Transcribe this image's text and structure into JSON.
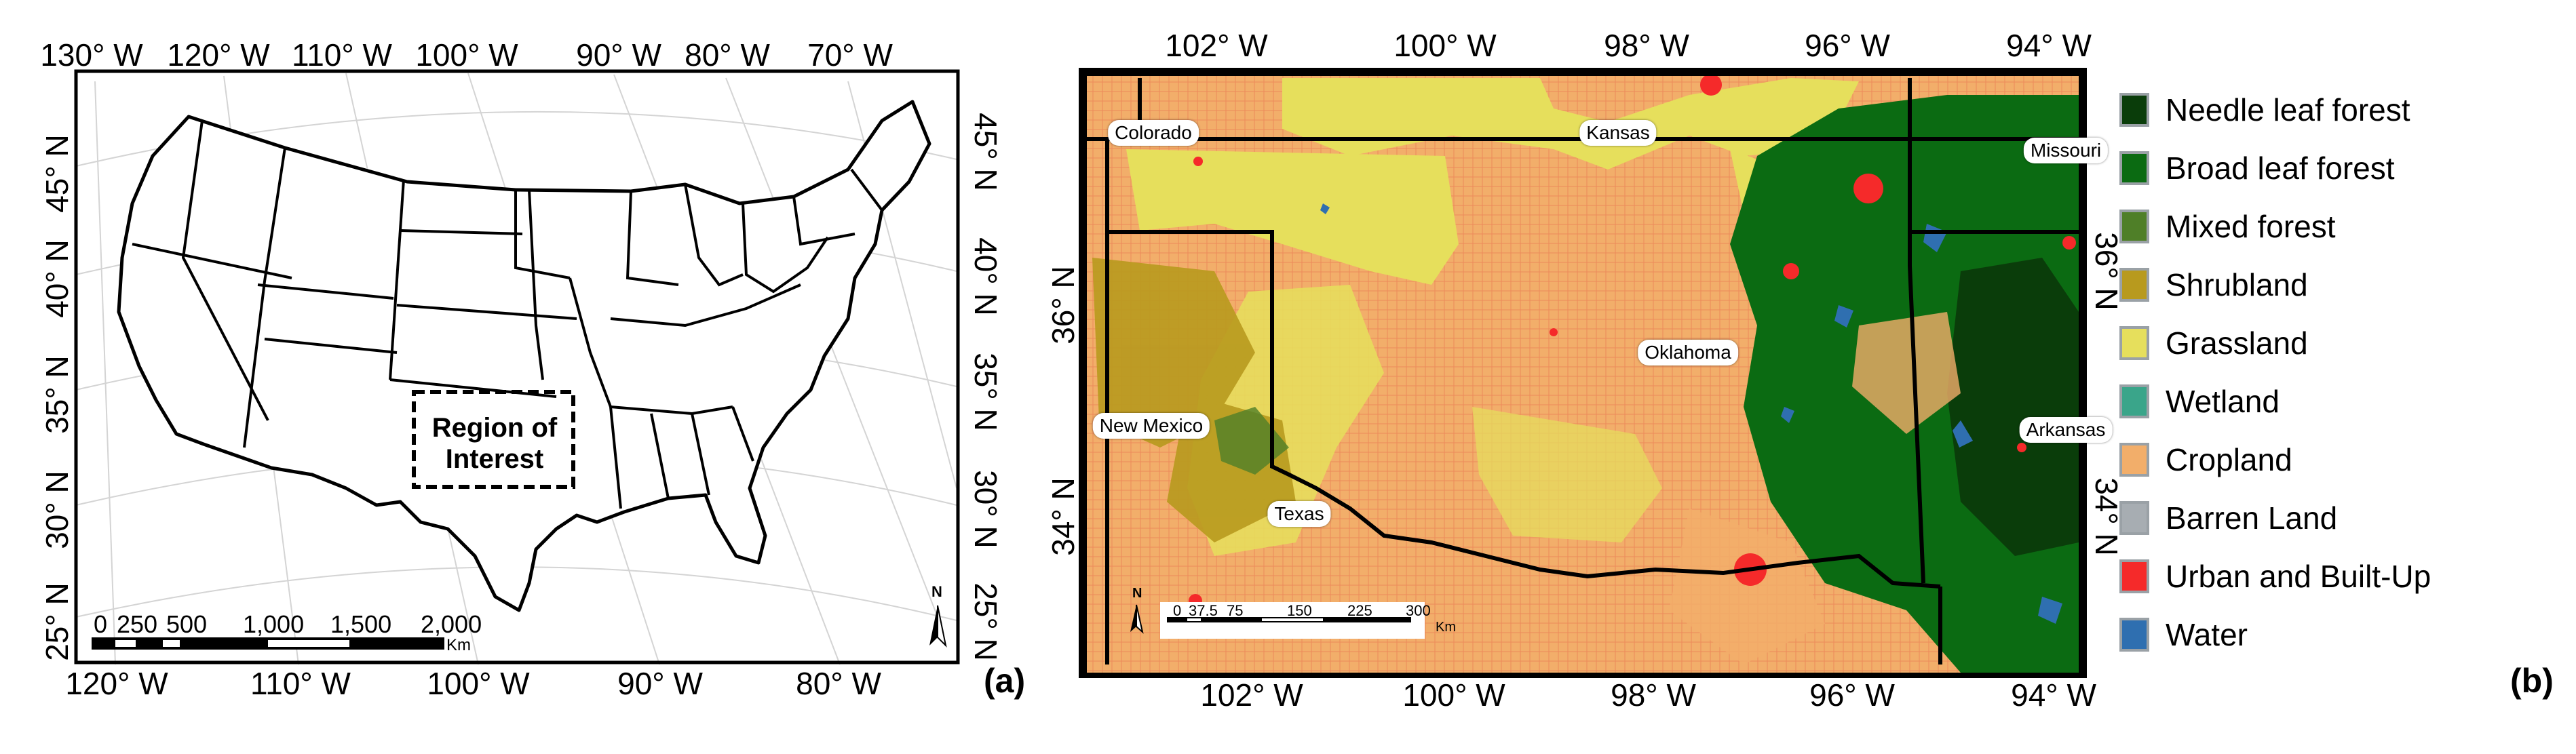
{
  "panel_a": {
    "label": "(a)",
    "top_ticks": [
      "130° W",
      "120° W",
      "110° W",
      "100° W",
      "90° W",
      "80° W",
      "70° W"
    ],
    "bottom_ticks": [
      "120° W",
      "110° W",
      "100° W",
      "90° W",
      "80° W"
    ],
    "left_ticks": [
      "45° N",
      "40° N",
      "35° N",
      "30° N",
      "25° N"
    ],
    "right_ticks": [
      "45° N",
      "40° N",
      "35° N",
      "30° N",
      "25° N"
    ],
    "region_label": "Region of Interest",
    "scale_values": [
      "0",
      "250",
      "500",
      "1,000",
      "1,500",
      "2,000"
    ],
    "scale_unit": "Km",
    "north": "N"
  },
  "panel_b": {
    "label": "(b)",
    "top_ticks": [
      "102° W",
      "100° W",
      "98° W",
      "96° W",
      "94° W"
    ],
    "bottom_ticks": [
      "102° W",
      "100° W",
      "98° W",
      "96° W",
      "94° W"
    ],
    "left_ticks": [
      "36° N",
      "34° N"
    ],
    "right_ticks": [
      "36° N",
      "34° N"
    ],
    "state_labels": [
      "Colorado",
      "Kansas",
      "Missouri",
      "Oklahoma",
      "New Mexico",
      "Arkansas",
      "Texas"
    ],
    "scale_values": [
      "0",
      "37.5",
      "75",
      "150",
      "225",
      "300"
    ],
    "scale_unit": "Km",
    "north": "N"
  },
  "legend": [
    {
      "label": "Needle leaf forest",
      "color": "#0a3d0a"
    },
    {
      "label": "Broad leaf forest",
      "color": "#0b6b12"
    },
    {
      "label": "Mixed forest",
      "color": "#4f7f28"
    },
    {
      "label": "Shrubland",
      "color": "#b89a1e"
    },
    {
      "label": "Grassland",
      "color": "#e6df5c"
    },
    {
      "label": "Wetland",
      "color": "#3aa58a"
    },
    {
      "label": "Cropland",
      "color": "#f2ae6a"
    },
    {
      "label": "Barren Land",
      "color": "#a7adb2"
    },
    {
      "label": "Urban and Built-Up",
      "color": "#f52a2a"
    },
    {
      "label": "Water",
      "color": "#2f6fb0"
    }
  ]
}
